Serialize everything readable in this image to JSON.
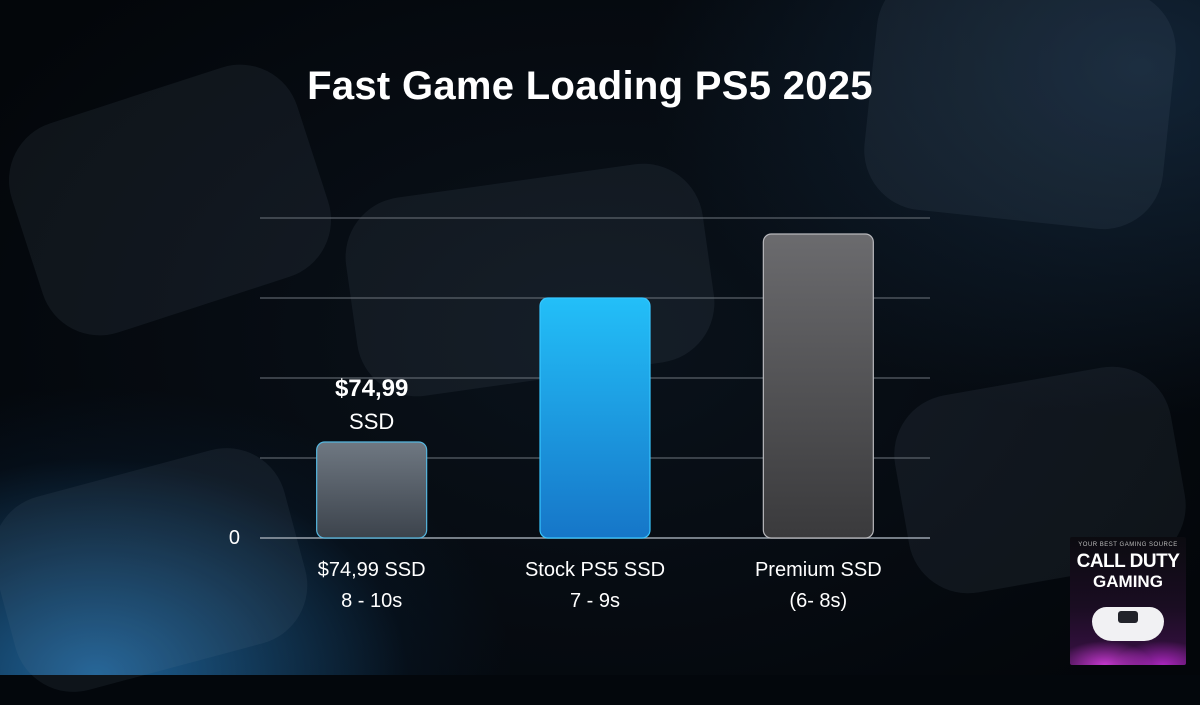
{
  "title": "Fast Game Loading PS5 2025",
  "logo": {
    "small_text": "YOUR BEST GAMING SOURCE",
    "line1": "CALL DUTY",
    "line2": "GAMING"
  },
  "chart_data": {
    "type": "bar",
    "title": "Fast Game Loading PS5 2025",
    "categories": [
      "$74,99 SSD",
      "Stock PS5 SSD",
      "Premium SSD"
    ],
    "category_sublabels": [
      "8 - 10s",
      "7 - 9s",
      "(6- 8s)"
    ],
    "values": [
      1.2,
      3.0,
      3.8
    ],
    "ylim": [
      0,
      4
    ],
    "y_ticks": [
      {
        "value": 0,
        "label": "0"
      }
    ],
    "grid": true,
    "bar_colors": [
      "#5f6873",
      "#1e9fe8",
      "#5e5e60"
    ],
    "annotation": {
      "category_index": 0,
      "lines": [
        "$74,99",
        "SSD"
      ]
    },
    "xlabel": "",
    "ylabel": ""
  }
}
